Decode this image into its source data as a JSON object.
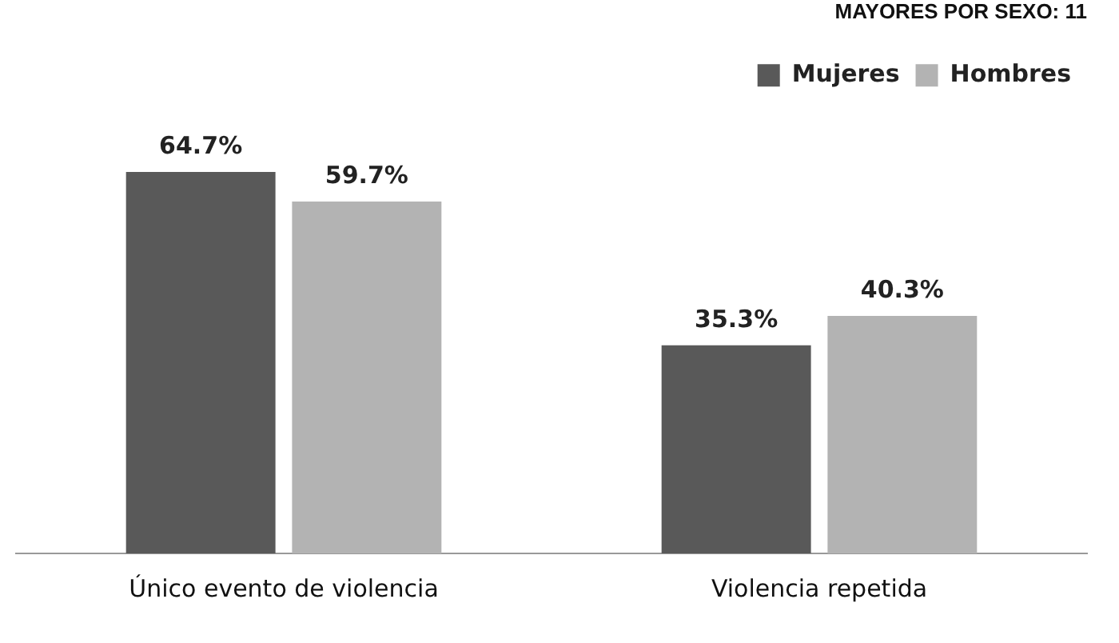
{
  "chart_data": {
    "type": "bar",
    "title": "MAYORES POR SEXO: 11",
    "categories": [
      "Único evento de violencia",
      "Violencia repetida"
    ],
    "series": [
      {
        "name": "Mujeres",
        "color": "#595959",
        "values": [
          64.7,
          35.3
        ],
        "value_labels": [
          "64.7%",
          "35.3%"
        ]
      },
      {
        "name": "Hombres",
        "color": "#b3b3b3",
        "values": [
          59.7,
          40.3
        ],
        "value_labels": [
          "59.7%",
          "40.3%"
        ]
      }
    ],
    "legend": "top right"
  }
}
